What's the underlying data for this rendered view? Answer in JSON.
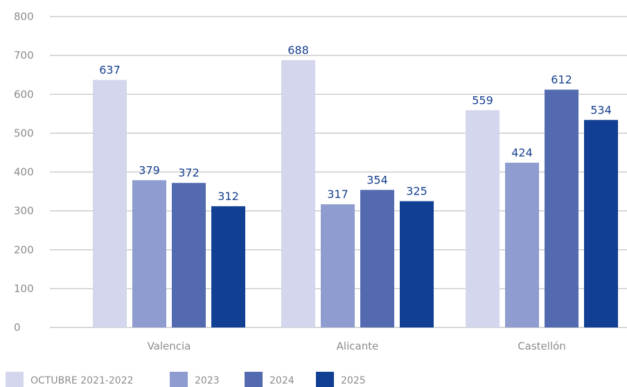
{
  "chart_data": {
    "type": "bar",
    "categories": [
      "Valencia",
      "Alicante",
      "Castellón"
    ],
    "series": [
      {
        "name": "OCTUBRE 2021-2022",
        "values": [
          637,
          688,
          559
        ],
        "color": "#d3d6ec"
      },
      {
        "name": "2023",
        "values": [
          379,
          317,
          424
        ],
        "color": "#8f9ccf"
      },
      {
        "name": "2024",
        "values": [
          372,
          354,
          612
        ],
        "color": "#536ab0"
      },
      {
        "name": "2025",
        "values": [
          312,
          325,
          534
        ],
        "color": "#103f93"
      }
    ],
    "title": "",
    "xlabel": "",
    "ylabel": "",
    "ylim": [
      0,
      800
    ],
    "yticks": [
      0,
      100,
      200,
      300,
      400,
      500,
      600,
      700,
      800
    ],
    "grid": true,
    "legend_position": "bottom-left",
    "label_color": "#163f8f",
    "tick_color": "#8b8b8b",
    "grid_color": "#cccccc"
  }
}
